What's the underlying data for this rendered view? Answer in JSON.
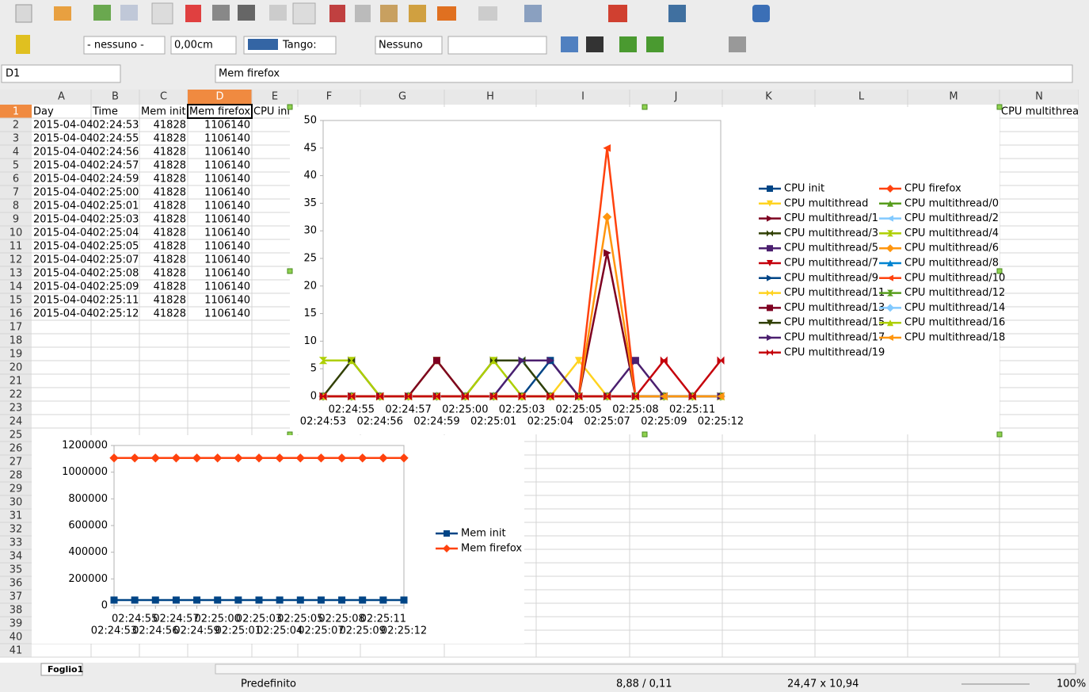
{
  "toolbar": {
    "paragraph_style": "- nessuno -",
    "spacing": "0,00cm",
    "color_name": "Tango:",
    "line_style": "Nessuno"
  },
  "formula_bar": {
    "name_box": "D1",
    "content": "Mem firefox"
  },
  "sheet": {
    "columns": [
      "A",
      "B",
      "C",
      "D",
      "E",
      "F",
      "G",
      "H",
      "I",
      "J",
      "K",
      "L",
      "M",
      "N"
    ],
    "row_numbers": [
      1,
      2,
      3,
      4,
      5,
      6,
      7,
      8,
      9,
      10,
      11,
      12,
      13,
      14,
      15,
      16,
      17,
      18,
      19,
      20,
      21,
      22,
      23,
      24,
      25,
      26,
      27,
      28,
      29,
      30,
      31,
      32,
      33,
      34,
      35,
      36,
      37,
      38,
      39,
      40,
      41
    ],
    "header": [
      "Day",
      "Time",
      "Mem init",
      "Mem firefox",
      "CPU init"
    ],
    "n1": "CPU multithread/",
    "rows": [
      [
        "2015-04-04",
        "02:24:53",
        41828,
        1106140
      ],
      [
        "2015-04-04",
        "02:24:55",
        41828,
        1106140
      ],
      [
        "2015-04-04",
        "02:24:56",
        41828,
        1106140
      ],
      [
        "2015-04-04",
        "02:24:57",
        41828,
        1106140
      ],
      [
        "2015-04-04",
        "02:24:59",
        41828,
        1106140
      ],
      [
        "2015-04-04",
        "02:25:00",
        41828,
        1106140
      ],
      [
        "2015-04-04",
        "02:25:01",
        41828,
        1106140
      ],
      [
        "2015-04-04",
        "02:25:03",
        41828,
        1106140
      ],
      [
        "2015-04-04",
        "02:25:04",
        41828,
        1106140
      ],
      [
        "2015-04-04",
        "02:25:05",
        41828,
        1106140
      ],
      [
        "2015-04-04",
        "02:25:07",
        41828,
        1106140
      ],
      [
        "2015-04-04",
        "02:25:08",
        41828,
        1106140
      ],
      [
        "2015-04-04",
        "02:25:09",
        41828,
        1106140
      ],
      [
        "2015-04-04",
        "02:25:11",
        41828,
        1106140
      ],
      [
        "2015-04-04",
        "02:25:12",
        41828,
        1106140
      ]
    ]
  },
  "chart_data": [
    {
      "type": "line",
      "legend": "right",
      "grid": false,
      "categories": [
        "02:24:53",
        "02:24:55",
        "02:24:56",
        "02:24:57",
        "02:24:59",
        "02:25:00",
        "02:25:01",
        "02:25:03",
        "02:25:04",
        "02:25:05",
        "02:25:07",
        "02:25:08",
        "02:25:09",
        "02:25:11",
        "02:25:12"
      ],
      "ylim": [
        0,
        50
      ],
      "yticks": [
        0,
        5,
        10,
        15,
        20,
        25,
        30,
        35,
        40,
        45,
        50
      ],
      "series": [
        {
          "name": "CPU init",
          "color": "#004586",
          "values": [
            0,
            0,
            0,
            0,
            0,
            0,
            0,
            0,
            6.5,
            0,
            0,
            0,
            0,
            0,
            0
          ]
        },
        {
          "name": "CPU firefox",
          "color": "#ff420e",
          "values": [
            0,
            0,
            0,
            0,
            0,
            0,
            0,
            0,
            0,
            0,
            0,
            0,
            0,
            0,
            0
          ]
        },
        {
          "name": "CPU multithread",
          "color": "#ffd320",
          "values": [
            0,
            0,
            0,
            0,
            0,
            0,
            0,
            0,
            0,
            6.5,
            0,
            0,
            0,
            0,
            0
          ]
        },
        {
          "name": "CPU multithread/0",
          "color": "#579d1c",
          "values": [
            0,
            0,
            0,
            0,
            0,
            0,
            0,
            0,
            0,
            0,
            0,
            0,
            0,
            0,
            0
          ]
        },
        {
          "name": "CPU multithread/1",
          "color": "#7e0021",
          "values": [
            0,
            0,
            0,
            0,
            0,
            0,
            0,
            0,
            0,
            0,
            26,
            0,
            0,
            0,
            0
          ]
        },
        {
          "name": "CPU multithread/2",
          "color": "#83caff",
          "values": [
            0,
            0,
            0,
            0,
            0,
            0,
            0,
            6.5,
            0,
            0,
            0,
            0,
            0,
            0,
            0
          ]
        },
        {
          "name": "CPU multithread/3",
          "color": "#314004",
          "values": [
            0,
            6.5,
            0,
            0,
            0,
            0,
            6.5,
            6.5,
            0,
            0,
            0,
            0,
            0,
            0,
            0
          ]
        },
        {
          "name": "CPU multithread/4",
          "color": "#aecf00",
          "values": [
            6.5,
            6.5,
            0,
            0,
            6.5,
            0,
            6.5,
            0,
            0,
            0,
            0,
            0,
            0,
            0,
            0
          ]
        },
        {
          "name": "CPU multithread/5",
          "color": "#4b1f6f",
          "values": [
            0,
            0,
            0,
            0,
            0,
            0,
            0,
            0,
            0,
            0,
            0,
            6.5,
            0,
            0,
            0
          ]
        },
        {
          "name": "CPU multithread/6",
          "color": "#ff950e",
          "values": [
            0,
            0,
            0,
            0,
            0,
            0,
            0,
            0,
            0,
            0,
            32.5,
            0,
            0,
            0,
            0
          ]
        },
        {
          "name": "CPU multithread/7",
          "color": "#c5000b",
          "values": [
            0,
            0,
            0,
            0,
            0,
            0,
            0,
            0,
            0,
            0,
            0,
            0,
            0,
            0,
            0
          ]
        },
        {
          "name": "CPU multithread/8",
          "color": "#0084d1",
          "values": [
            0,
            0,
            0,
            0,
            0,
            0,
            0,
            0,
            0,
            0,
            0,
            0,
            0,
            0,
            0
          ]
        },
        {
          "name": "CPU multithread/9",
          "color": "#004586",
          "values": [
            0,
            0,
            0,
            0,
            0,
            0,
            0,
            0,
            0,
            0,
            0,
            0,
            0,
            0,
            0
          ]
        },
        {
          "name": "CPU multithread/10",
          "color": "#ff420e",
          "values": [
            0,
            0,
            0,
            0,
            0,
            0,
            0,
            0,
            0,
            0,
            45,
            0,
            0,
            0,
            0
          ]
        },
        {
          "name": "CPU multithread/11",
          "color": "#ffd320",
          "values": [
            0,
            0,
            0,
            0,
            0,
            0,
            0,
            0,
            0,
            0,
            0,
            0,
            0,
            0,
            0
          ]
        },
        {
          "name": "CPU multithread/12",
          "color": "#579d1c",
          "values": [
            0,
            0,
            0,
            0,
            0,
            0,
            0,
            0,
            0,
            0,
            0,
            0,
            0,
            0,
            0
          ]
        },
        {
          "name": "CPU multithread/13",
          "color": "#7e0021",
          "values": [
            0,
            0,
            0,
            0,
            6.5,
            0,
            0,
            0,
            0,
            0,
            0,
            0,
            0,
            0,
            0
          ]
        },
        {
          "name": "CPU multithread/14",
          "color": "#83caff",
          "values": [
            0,
            0,
            0,
            0,
            0,
            0,
            0,
            0,
            0,
            0,
            0,
            0,
            0,
            0,
            0
          ]
        },
        {
          "name": "CPU multithread/15",
          "color": "#314004",
          "values": [
            0,
            0,
            0,
            0,
            0,
            0,
            0,
            0,
            0,
            0,
            0,
            0,
            0,
            0,
            0
          ]
        },
        {
          "name": "CPU multithread/16",
          "color": "#aecf00",
          "values": [
            0,
            0,
            0,
            0,
            0,
            0,
            0,
            0,
            0,
            0,
            0,
            0,
            0,
            0,
            0
          ]
        },
        {
          "name": "CPU multithread/17",
          "color": "#4b1f6f",
          "values": [
            0,
            0,
            0,
            0,
            0,
            0,
            0,
            6.5,
            6.5,
            0,
            0,
            0,
            0,
            0,
            0
          ]
        },
        {
          "name": "CPU multithread/18",
          "color": "#ff950e",
          "values": [
            0,
            0,
            0,
            0,
            0,
            0,
            0,
            0,
            0,
            0,
            0,
            0,
            0,
            0,
            0
          ]
        },
        {
          "name": "CPU multithread/19",
          "color": "#c5000b",
          "values": [
            0,
            0,
            0,
            0,
            0,
            0,
            0,
            0,
            0,
            0,
            0,
            0,
            6.5,
            0,
            6.5
          ]
        }
      ]
    },
    {
      "type": "line",
      "legend": "right",
      "grid": false,
      "categories": [
        "02:24:53",
        "02:24:55",
        "02:24:56",
        "02:24:57",
        "02:24:59",
        "02:25:00",
        "02:25:01",
        "02:25:03",
        "02:25:04",
        "02:25:05",
        "02:25:07",
        "02:25:08",
        "02:25:09",
        "02:25:11",
        "02:25:12"
      ],
      "ylim": [
        0,
        1200000
      ],
      "yticks": [
        0,
        200000,
        400000,
        600000,
        800000,
        1000000,
        1200000
      ],
      "series": [
        {
          "name": "Mem init",
          "color": "#004586",
          "values": [
            41828,
            41828,
            41828,
            41828,
            41828,
            41828,
            41828,
            41828,
            41828,
            41828,
            41828,
            41828,
            41828,
            41828,
            41828
          ]
        },
        {
          "name": "Mem firefox",
          "color": "#ff420e",
          "values": [
            1106140,
            1106140,
            1106140,
            1106140,
            1106140,
            1106140,
            1106140,
            1106140,
            1106140,
            1106140,
            1106140,
            1106140,
            1106140,
            1106140,
            1106140
          ]
        }
      ]
    }
  ],
  "status_bar": {
    "sheet_tab": "Foglio1",
    "page_style": "Predefinito",
    "position": "8,88 / 0,11",
    "size": "24,47 x 10,94",
    "zoom": "100%"
  }
}
